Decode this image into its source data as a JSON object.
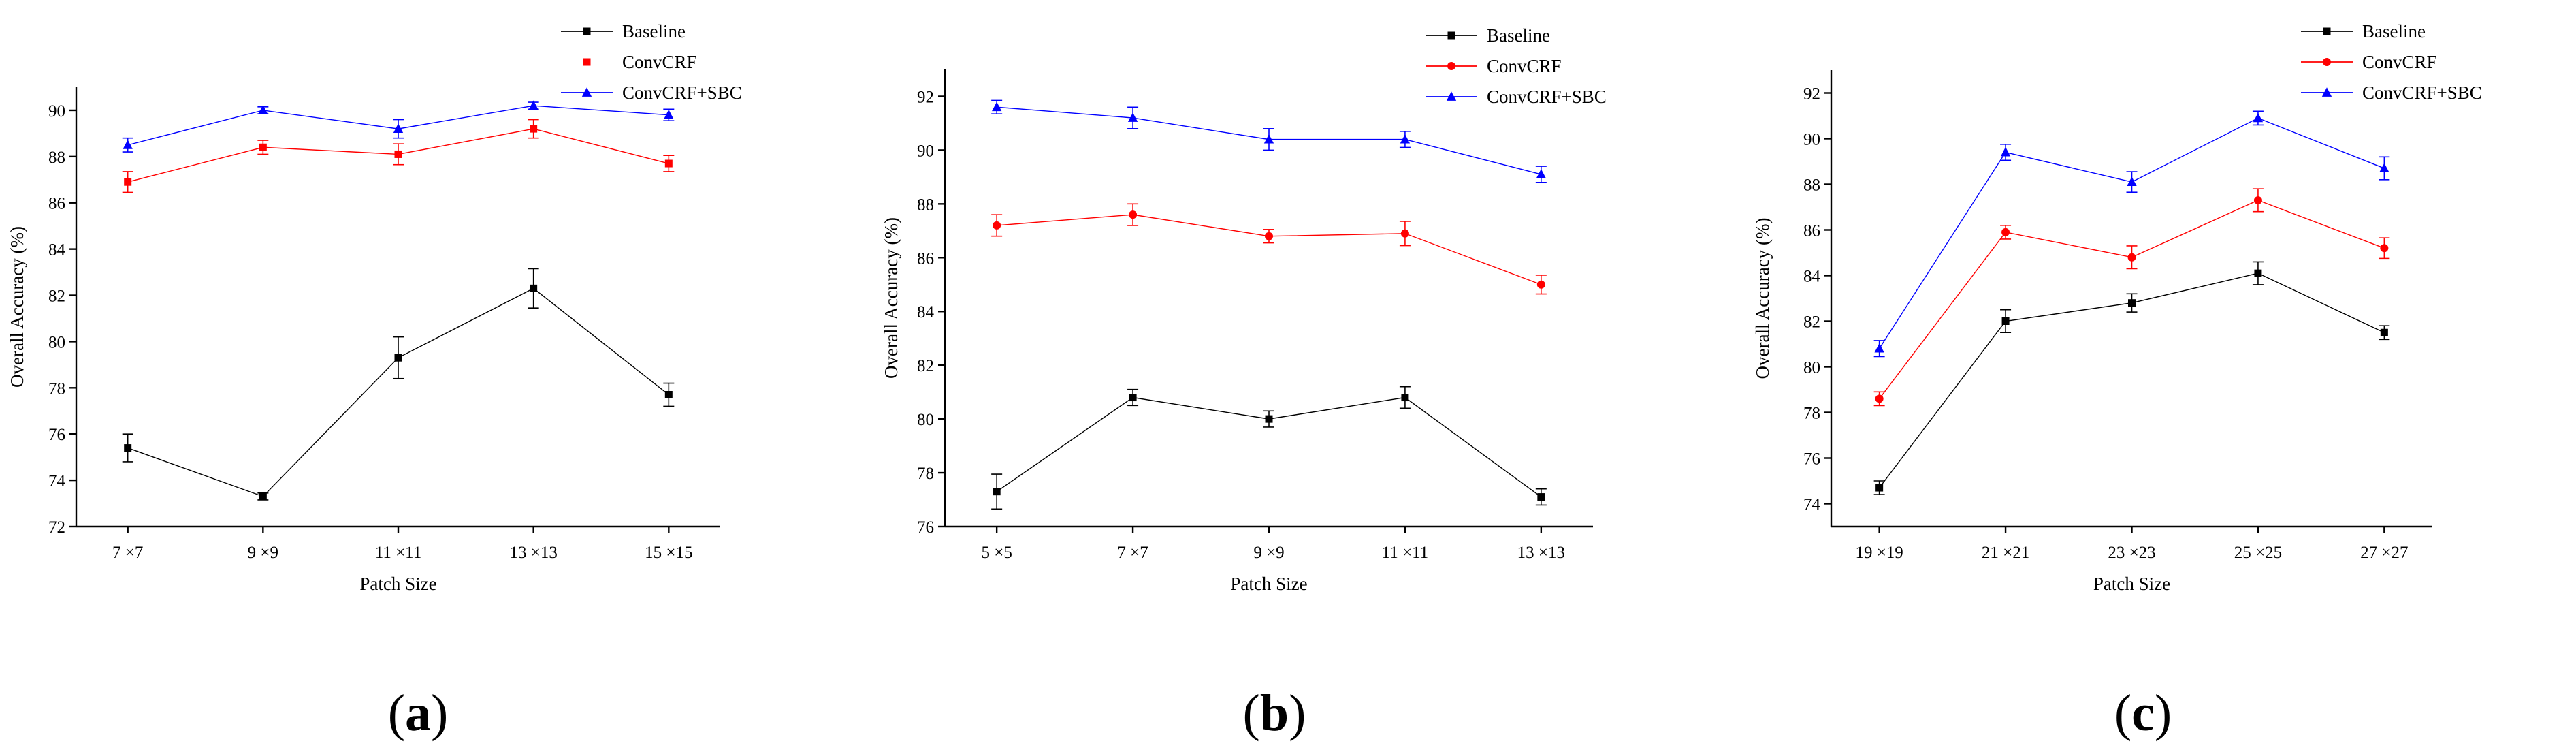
{
  "chart_data": [
    {
      "type": "line",
      "panel_label": "a",
      "xlabel": "Patch Size",
      "ylabel": "Overall Accuracy (%)",
      "categories": [
        "7 ×7",
        "9 ×9",
        "11 ×11",
        "13 ×13",
        "15 ×15"
      ],
      "ylim": [
        72,
        91
      ],
      "yticks": [
        72,
        74,
        76,
        78,
        80,
        82,
        84,
        86,
        88,
        90
      ],
      "legend_position": "top-right",
      "series": [
        {
          "name": "Baseline",
          "color": "#000000",
          "marker": "square",
          "line": true,
          "values": [
            75.4,
            73.3,
            79.3,
            82.3,
            77.7
          ],
          "errors": [
            0.6,
            0.15,
            0.9,
            0.85,
            0.5
          ]
        },
        {
          "name": "ConvCRF",
          "color": "#ff0000",
          "marker": "square",
          "line": true,
          "legend_line": false,
          "values": [
            86.9,
            88.4,
            88.1,
            89.2,
            87.7
          ],
          "errors": [
            0.45,
            0.3,
            0.45,
            0.4,
            0.35
          ]
        },
        {
          "name": "ConvCRF+SBC",
          "color": "#0000ff",
          "marker": "triangle",
          "line": true,
          "values": [
            88.5,
            90.0,
            89.2,
            90.2,
            89.8
          ],
          "errors": [
            0.3,
            0.15,
            0.4,
            0.15,
            0.25
          ]
        }
      ]
    },
    {
      "type": "line",
      "panel_label": "b",
      "xlabel": "Patch Size",
      "ylabel": "Overall Accuracy (%)",
      "categories": [
        "5 ×5",
        "7 ×7",
        "9 ×9",
        "11 ×11",
        "13 ×13"
      ],
      "ylim": [
        76,
        93
      ],
      "yticks": [
        76,
        78,
        80,
        82,
        84,
        86,
        88,
        90,
        92
      ],
      "legend_position": "top-right",
      "series": [
        {
          "name": "Baseline",
          "color": "#000000",
          "marker": "square",
          "line": true,
          "values": [
            77.3,
            80.8,
            80.0,
            80.8,
            77.1
          ],
          "errors": [
            0.65,
            0.3,
            0.3,
            0.4,
            0.3
          ]
        },
        {
          "name": "ConvCRF",
          "color": "#ff0000",
          "marker": "circle",
          "line": true,
          "values": [
            87.2,
            87.6,
            86.8,
            86.9,
            85.0
          ],
          "errors": [
            0.4,
            0.4,
            0.25,
            0.45,
            0.35
          ]
        },
        {
          "name": "ConvCRF+SBC",
          "color": "#0000ff",
          "marker": "triangle",
          "line": true,
          "values": [
            91.6,
            91.2,
            90.4,
            90.4,
            89.1
          ],
          "errors": [
            0.25,
            0.4,
            0.4,
            0.3,
            0.3
          ]
        }
      ]
    },
    {
      "type": "line",
      "panel_label": "c",
      "xlabel": "Patch Size",
      "ylabel": "Overall Accuracy (%)",
      "categories": [
        "19 ×19",
        "21 ×21",
        "23 ×23",
        "25 ×25",
        "27 ×27"
      ],
      "ylim": [
        73,
        93
      ],
      "yticks": [
        74,
        76,
        78,
        80,
        82,
        84,
        86,
        88,
        90,
        92
      ],
      "legend_position": "top-right",
      "series": [
        {
          "name": "Baseline",
          "color": "#000000",
          "marker": "square",
          "line": true,
          "values": [
            74.7,
            82.0,
            82.8,
            84.1,
            81.5
          ],
          "errors": [
            0.3,
            0.5,
            0.4,
            0.5,
            0.3
          ]
        },
        {
          "name": "ConvCRF",
          "color": "#ff0000",
          "marker": "circle",
          "line": true,
          "values": [
            78.6,
            85.9,
            84.8,
            87.3,
            85.2
          ],
          "errors": [
            0.3,
            0.3,
            0.5,
            0.5,
            0.45
          ]
        },
        {
          "name": "ConvCRF+SBC",
          "color": "#0000ff",
          "marker": "triangle",
          "line": true,
          "values": [
            80.8,
            89.4,
            88.1,
            90.9,
            88.7
          ],
          "errors": [
            0.35,
            0.35,
            0.45,
            0.3,
            0.5
          ]
        }
      ]
    }
  ]
}
